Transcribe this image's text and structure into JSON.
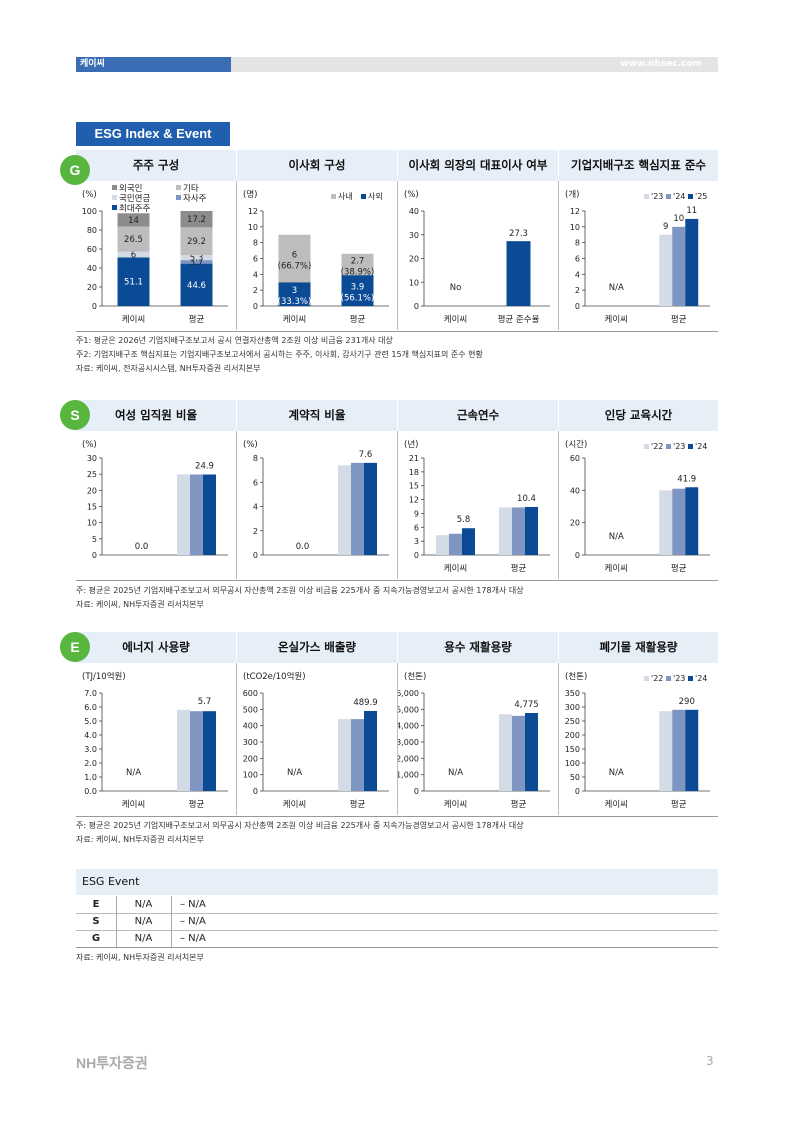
{
  "header": {
    "company": "케이씨",
    "url": "www.nhsec.com"
  },
  "section_title": "ESG Index & Event",
  "colors": {
    "navy": "#0b4b96",
    "mid": "#7f96c3",
    "light": "#d3dbe6",
    "gray": "#a8a8a8",
    "gray2": "#bdbdbd",
    "dgray": "#8c8c8c",
    "band": "#e6eef7",
    "badge": "#58b63f"
  },
  "g": {
    "badge": "G",
    "titles": [
      "주주 구성",
      "이사회 구성",
      "이사회 의장의 대표이사 여부",
      "기업지배구조 핵심지표 준수"
    ],
    "notes": [
      "주1: 평균은 2026년 기업지배구조보고서 공시 연결자산총액 2조원 이상 비금융 231개사 대상",
      "주2: 기업지배구조 핵심지표는 기업지배구조보고서에서 공시하는 주주, 이사회, 감사기구 관련 15개 핵심지표의 준수 현황",
      "자료: 케이씨, 전자공시시스템, NH투자증권 리서치본부"
    ]
  },
  "s": {
    "badge": "S",
    "titles": [
      "여성 임직원 비율",
      "계약직 비율",
      "근속연수",
      "인당 교육시간"
    ],
    "notes": [
      "주: 평균은 2025년 기업지배구조보고서 의무공시 자산총액 2조원 이상 비금융 225개사 중 지속가능경영보고서 공시한 178개사 대상",
      "자료: 케이씨, NH투자증권 리서치본부"
    ]
  },
  "e": {
    "badge": "E",
    "titles": [
      "에너지 사용량",
      "온실가스 배출량",
      "용수 재활용량",
      "폐기물 재활용량"
    ],
    "notes": [
      "주: 평균은 2025년 기업지배구조보고서 의무공시 자산총액 2조원 이상 비금융 225개사 중 지속가능경영보고서 공시한 178개사 대상",
      "자료: 케이씨, NH투자증권 리서치본부"
    ]
  },
  "chart_data": [
    {
      "id": "g1",
      "type": "bar",
      "stacked": true,
      "unit": "(%)",
      "categories": [
        "케이씨",
        "평균"
      ],
      "ylim": [
        0,
        100
      ],
      "ticks": [
        0,
        20,
        40,
        60,
        80,
        100
      ],
      "series": [
        {
          "name": "최대주주",
          "color": "navy",
          "values": [
            51.1,
            44.6
          ]
        },
        {
          "name": "자사주",
          "color": "mid",
          "values": [
            0,
            3.7
          ]
        },
        {
          "name": "국민연금",
          "color": "light",
          "values": [
            6.0,
            5.3
          ]
        },
        {
          "name": "기타",
          "color": "gray2",
          "values": [
            26.5,
            29.2
          ]
        },
        {
          "name": "외국인",
          "color": "dgray",
          "values": [
            14.0,
            17.2
          ]
        }
      ],
      "legend": [
        {
          "name": "외국인",
          "color": "dgray"
        },
        {
          "name": "기타",
          "color": "gray2"
        },
        {
          "name": "국민연금",
          "color": "light"
        },
        {
          "name": "자사주",
          "color": "mid"
        },
        {
          "name": "최대주주",
          "color": "navy"
        }
      ]
    },
    {
      "id": "g2",
      "type": "bar",
      "stacked": true,
      "unit": "(명)",
      "categories": [
        "케이씨",
        "평균"
      ],
      "ylim": [
        0,
        12
      ],
      "ticks": [
        0,
        2,
        4,
        6,
        8,
        10,
        12
      ],
      "series": [
        {
          "name": "사외",
          "color": "navy",
          "values": [
            3,
            3.9
          ],
          "pct": [
            "(33.3%)",
            "(56.1%)"
          ]
        },
        {
          "name": "사내",
          "color": "gray2",
          "values": [
            6,
            2.7
          ],
          "pct": [
            "(66.7%)",
            "(38.9%)"
          ]
        }
      ],
      "legend": [
        {
          "name": "사내",
          "color": "gray2"
        },
        {
          "name": "사외",
          "color": "navy"
        }
      ]
    },
    {
      "id": "g3",
      "type": "bar",
      "unit": "(%)",
      "categories": [
        "케이씨",
        "평균 준수율"
      ],
      "ylim": [
        0,
        40
      ],
      "ticks": [
        0,
        10,
        20,
        30,
        40
      ],
      "series": [
        {
          "color": "navy",
          "values": [
            null,
            27.3
          ]
        }
      ],
      "na_label": "No"
    },
    {
      "id": "g4",
      "type": "bar",
      "unit": "(개)",
      "categories": [
        "케이씨",
        "평균"
      ],
      "ylim": [
        0,
        12
      ],
      "ticks": [
        0,
        2,
        4,
        6,
        8,
        10,
        12
      ],
      "series": [
        {
          "name": "'23",
          "color": "light",
          "values": [
            null,
            9
          ]
        },
        {
          "name": "'24",
          "color": "mid",
          "values": [
            null,
            10
          ]
        },
        {
          "name": "'25",
          "color": "navy",
          "values": [
            null,
            11
          ]
        }
      ],
      "na_label": "N/A",
      "legend": [
        {
          "name": "'23",
          "color": "light"
        },
        {
          "name": "'24",
          "color": "mid"
        },
        {
          "name": "'25",
          "color": "navy"
        }
      ]
    },
    {
      "id": "s1",
      "type": "bar",
      "unit": "(%)",
      "categories": [
        "",
        ""
      ],
      "ylim": [
        0,
        30
      ],
      "ticks": [
        0,
        5,
        10,
        15,
        20,
        25,
        30
      ],
      "series": [
        {
          "color": "light",
          "values": [
            0,
            24.9
          ]
        },
        {
          "color": "mid",
          "values": [
            0,
            24.9
          ]
        },
        {
          "color": "navy",
          "values": [
            0,
            24.9
          ]
        }
      ],
      "labels": [
        {
          "cat": 0,
          "text": "0.0"
        },
        {
          "cat": 1,
          "text": "24.9"
        }
      ]
    },
    {
      "id": "s2",
      "type": "bar",
      "unit": "(%)",
      "categories": [
        "",
        ""
      ],
      "ylim": [
        0,
        8
      ],
      "ticks": [
        0,
        2,
        4,
        6,
        8
      ],
      "series": [
        {
          "color": "light",
          "values": [
            0,
            7.4
          ]
        },
        {
          "color": "mid",
          "values": [
            0,
            7.6
          ]
        },
        {
          "color": "navy",
          "values": [
            0,
            7.6
          ]
        }
      ],
      "labels": [
        {
          "cat": 0,
          "text": "0.0"
        },
        {
          "cat": 1,
          "text": "7.6"
        }
      ]
    },
    {
      "id": "s3",
      "type": "bar",
      "unit": "(년)",
      "categories": [
        "케이씨",
        "평균"
      ],
      "ylim": [
        0,
        21
      ],
      "ticks": [
        0,
        3,
        6,
        9,
        12,
        15,
        18,
        21
      ],
      "series": [
        {
          "color": "light",
          "values": [
            4.3,
            10.3
          ]
        },
        {
          "color": "mid",
          "values": [
            4.6,
            10.3
          ]
        },
        {
          "color": "navy",
          "values": [
            5.8,
            10.4
          ]
        }
      ],
      "labels": [
        {
          "cat": 0,
          "text": "5.8"
        },
        {
          "cat": 1,
          "text": "10.4"
        }
      ]
    },
    {
      "id": "s4",
      "type": "bar",
      "unit": "(시간)",
      "categories": [
        "케이씨",
        "평균"
      ],
      "ylim": [
        0,
        60
      ],
      "ticks": [
        0,
        20,
        40,
        60
      ],
      "series": [
        {
          "name": "'22",
          "color": "light",
          "values": [
            null,
            40
          ]
        },
        {
          "name": "'23",
          "color": "mid",
          "values": [
            null,
            41
          ]
        },
        {
          "name": "'24",
          "color": "navy",
          "values": [
            null,
            41.9
          ]
        }
      ],
      "na_label": "N/A",
      "labels": [
        {
          "cat": 1,
          "text": "41.9"
        }
      ],
      "legend": [
        {
          "name": "'22",
          "color": "light"
        },
        {
          "name": "'23",
          "color": "mid"
        },
        {
          "name": "'24",
          "color": "navy"
        }
      ]
    },
    {
      "id": "e1",
      "type": "bar",
      "unit": "(TJ/10억원)",
      "categories": [
        "케이씨",
        "평균"
      ],
      "ylim": [
        0,
        7
      ],
      "ticks": [
        "0.0",
        "1.0",
        "2.0",
        "3.0",
        "4.0",
        "5.0",
        "6.0",
        "7.0"
      ],
      "series": [
        {
          "color": "light",
          "values": [
            null,
            5.8
          ]
        },
        {
          "color": "mid",
          "values": [
            null,
            5.7
          ]
        },
        {
          "color": "navy",
          "values": [
            null,
            5.7
          ]
        }
      ],
      "na_label": "N/A",
      "labels": [
        {
          "cat": 1,
          "text": "5.7"
        }
      ]
    },
    {
      "id": "e2",
      "type": "bar",
      "unit": "(tCO2e/10억원)",
      "categories": [
        "케이씨",
        "평균"
      ],
      "ylim": [
        0,
        600
      ],
      "ticks": [
        0,
        100,
        200,
        300,
        400,
        500,
        600
      ],
      "series": [
        {
          "color": "light",
          "values": [
            null,
            440
          ]
        },
        {
          "color": "mid",
          "values": [
            null,
            440
          ]
        },
        {
          "color": "navy",
          "values": [
            null,
            489.9
          ]
        }
      ],
      "na_label": "N/A",
      "labels": [
        {
          "cat": 1,
          "text": "489.9"
        }
      ]
    },
    {
      "id": "e3",
      "type": "bar",
      "unit": "(천톤)",
      "categories": [
        "케이씨",
        "평균"
      ],
      "ylim": [
        0,
        6000
      ],
      "ticks": [
        "0",
        "1,000",
        "2,000",
        "3,000",
        "4,000",
        "5,000",
        "6,000"
      ],
      "series": [
        {
          "color": "light",
          "values": [
            null,
            4700
          ]
        },
        {
          "color": "mid",
          "values": [
            null,
            4600
          ]
        },
        {
          "color": "navy",
          "values": [
            null,
            4775
          ]
        }
      ],
      "na_label": "N/A",
      "labels": [
        {
          "cat": 1,
          "text": "4,775"
        }
      ]
    },
    {
      "id": "e4",
      "type": "bar",
      "unit": "(천톤)",
      "categories": [
        "케이씨",
        "평균"
      ],
      "ylim": [
        0,
        350
      ],
      "ticks": [
        0,
        50,
        100,
        150,
        200,
        250,
        300,
        350
      ],
      "series": [
        {
          "name": "'22",
          "color": "light",
          "values": [
            null,
            285
          ]
        },
        {
          "name": "'23",
          "color": "mid",
          "values": [
            null,
            290
          ]
        },
        {
          "name": "'24",
          "color": "navy",
          "values": [
            null,
            290
          ]
        }
      ],
      "na_label": "N/A",
      "labels": [
        {
          "cat": 1,
          "text": "290"
        }
      ],
      "legend": [
        {
          "name": "'22",
          "color": "light"
        },
        {
          "name": "'23",
          "color": "mid"
        },
        {
          "name": "'24",
          "color": "navy"
        }
      ]
    }
  ],
  "event": {
    "title": "ESG Event",
    "rows": [
      {
        "k": "E",
        "v": "N/A",
        "d": "– N/A"
      },
      {
        "k": "S",
        "v": "N/A",
        "d": "– N/A"
      },
      {
        "k": "G",
        "v": "N/A",
        "d": "– N/A"
      }
    ],
    "source": "자료: 케이씨, NH투자증권 리서치본부"
  },
  "footer": {
    "logo": "NH투자증권",
    "page": "3"
  }
}
